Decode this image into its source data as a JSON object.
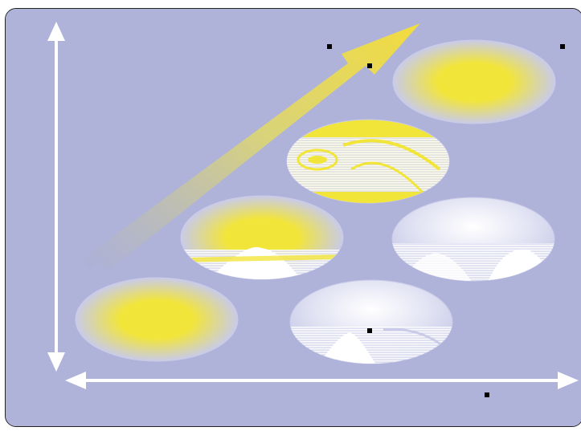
{
  "colors": {
    "background": "#afb3da",
    "axis": "#ffffff",
    "yellow": "#f2e53a",
    "lavender": "#c9cbe8",
    "trend_arrow_start": "#a9aedb",
    "trend_arrow_end": "#f2dc3e",
    "handle": "#000000"
  },
  "icons": {
    "x_axis": "double-headed-arrow",
    "y_axis": "double-headed-arrow",
    "trend": "diagonal-arrow",
    "handles": "square-selection-handle"
  },
  "ellipses": [
    {
      "name": "ellipse-bottom-left",
      "style": "yellow-glow"
    },
    {
      "name": "ellipse-middle-left",
      "style": "yellow-glitched"
    },
    {
      "name": "ellipse-center",
      "style": "yellow-striped"
    },
    {
      "name": "ellipse-top-right",
      "style": "yellow-glow"
    },
    {
      "name": "ellipse-bottom-center",
      "style": "lavender-glitched"
    },
    {
      "name": "ellipse-middle-right",
      "style": "lavender-glitched"
    }
  ]
}
